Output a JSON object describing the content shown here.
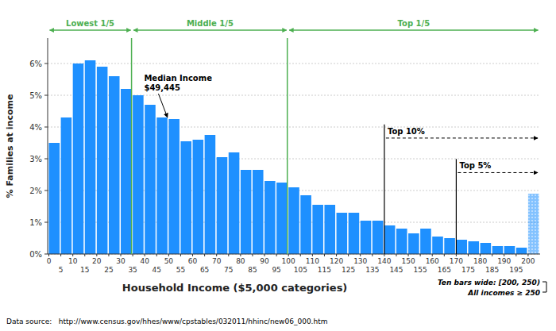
{
  "chart_data": {
    "type": "bar",
    "categories": [
      "0",
      "5",
      "10",
      "15",
      "20",
      "25",
      "30",
      "35",
      "40",
      "45",
      "50",
      "55",
      "60",
      "65",
      "70",
      "75",
      "80",
      "85",
      "90",
      "95",
      "100",
      "105",
      "110",
      "115",
      "120",
      "125",
      "130",
      "135",
      "140",
      "145",
      "150",
      "155",
      "160",
      "165",
      "170",
      "175",
      "180",
      "185",
      "190",
      "195",
      "200"
    ],
    "values": [
      3.5,
      4.3,
      6.0,
      6.1,
      5.9,
      5.6,
      5.2,
      5.0,
      4.7,
      4.3,
      4.25,
      3.55,
      3.6,
      3.75,
      3.05,
      3.2,
      2.65,
      2.65,
      2.3,
      2.25,
      2.1,
      1.85,
      1.55,
      1.55,
      1.3,
      1.3,
      1.05,
      1.05,
      0.9,
      0.8,
      0.65,
      0.8,
      0.55,
      0.5,
      0.45,
      0.4,
      0.35,
      0.25,
      0.25,
      0.2,
      1.9
    ],
    "color": "#1E90FF",
    "xlabel": "Household Income ($5,000 categories)",
    "ylabel": "% Families at income",
    "ylim": [
      0,
      6.8
    ],
    "yticks": [
      {
        "value": 0,
        "label": "0%"
      },
      {
        "value": 1,
        "label": "1%"
      },
      {
        "value": 2,
        "label": "2%"
      },
      {
        "value": 3,
        "label": "3%"
      },
      {
        "value": 4,
        "label": "4%"
      },
      {
        "value": 5,
        "label": "5%"
      },
      {
        "value": 6,
        "label": "6%"
      }
    ],
    "grid": true,
    "annotations": [
      {
        "type": "bracket",
        "text": "Lowest 1/5",
        "start": "0",
        "end": "30",
        "color": "#4CAF50"
      },
      {
        "type": "bracket",
        "text": "Middle 1/5",
        "start": "35",
        "end": "95",
        "color": "#4CAF50"
      },
      {
        "type": "bracket",
        "text": "Top 1/5",
        "start": "100",
        "end": "200",
        "color": "#4CAF50"
      },
      {
        "type": "arrow",
        "text": "Median Income\n$49,445",
        "category": "45"
      },
      {
        "type": "marker",
        "text": "Top 10%",
        "start": "140"
      },
      {
        "type": "marker",
        "text": "Top 5%",
        "start": "170"
      }
    ],
    "notes": [
      "Ten bars wide: [200, 250)",
      "All incomes ≥ 250"
    ],
    "footnote": "Data source:   http://www.census.gov/hhes/www/cpstables/032011/hhinc/new06_000.htm"
  }
}
